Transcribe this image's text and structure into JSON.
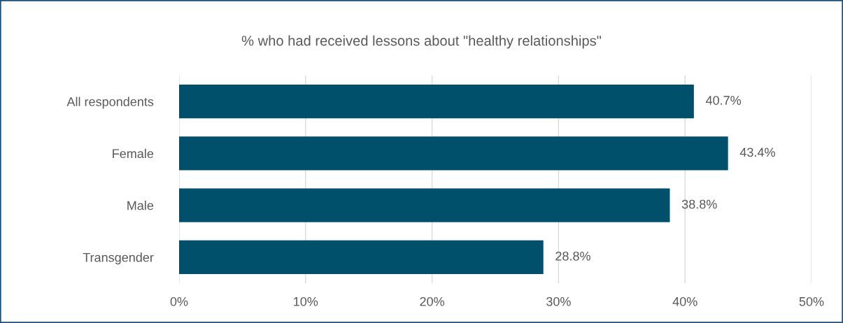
{
  "chart_data": {
    "type": "bar",
    "orientation": "horizontal",
    "title": "% who had received lessons about \"healthy relationships\"",
    "categories": [
      "All respondents",
      "Female",
      "Male",
      "Transgender"
    ],
    "values": [
      40.7,
      43.4,
      38.8,
      28.8
    ],
    "value_labels": [
      "40.7%",
      "43.4%",
      "38.8%",
      "28.8%"
    ],
    "color": "#00506b",
    "xlim": [
      0,
      50
    ],
    "xticks": [
      {
        "value": 0,
        "label": "0%"
      },
      {
        "value": 10,
        "label": "10%"
      },
      {
        "value": 20,
        "label": "20%"
      },
      {
        "value": 30,
        "label": "30%"
      },
      {
        "value": 40,
        "label": "40%"
      },
      {
        "value": 50,
        "label": "50%"
      }
    ],
    "grid": "x",
    "legend": false
  }
}
